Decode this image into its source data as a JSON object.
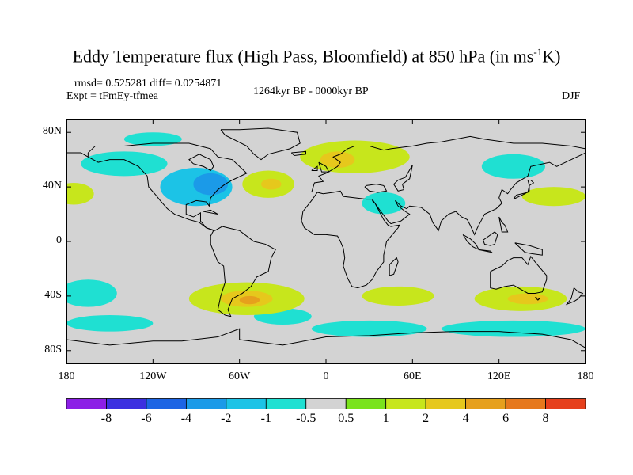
{
  "title": {
    "main": "Eddy Temperature flux (High Pass, Bloomfield) at 850 hPa (in ms",
    "sup": "-1",
    "end": "K)"
  },
  "stats_text": "rmsd= 0.525281 diff= 0.0254871",
  "experiment_text": "Expt = tFmEy-tfmea",
  "period_text": "1264kyr BP - 0000kyr BP",
  "season_text": "DJF",
  "lat_labels": [
    "80N",
    "40N",
    "0",
    "40S",
    "80S"
  ],
  "lon_labels": [
    "180",
    "120W",
    "60W",
    "0",
    "60E",
    "120E",
    "180"
  ],
  "colorbar": {
    "labels": [
      "-8",
      "-6",
      "-4",
      "-2",
      "-1",
      "-0.5",
      "0.5",
      "1",
      "2",
      "4",
      "6",
      "8"
    ],
    "colors": [
      "#8c1fe6",
      "#3b2fe0",
      "#1c64e4",
      "#1b9ae8",
      "#1cc3e6",
      "#1fe0d2",
      "#d3d3d3",
      "#7ae31c",
      "#c7e61c",
      "#e6c81c",
      "#e6a01c",
      "#e6781c",
      "#e6401c"
    ]
  },
  "map": {
    "background": "#d3d3d3",
    "coastline_color": "#000000",
    "anomaly_patches": [
      {
        "lon": 20,
        "lat": 62,
        "rlon": 38,
        "rlat": 12,
        "level": "1"
      },
      {
        "lon": 8,
        "lat": 60,
        "rlon": 12,
        "rlat": 6,
        "level": "2"
      },
      {
        "lon": -40,
        "lat": 42,
        "rlon": 18,
        "rlat": 10,
        "level": "1"
      },
      {
        "lon": -38,
        "lat": 42,
        "rlon": 7,
        "rlat": 4,
        "level": "2"
      },
      {
        "lon": -175,
        "lat": 35,
        "rlon": 14,
        "rlat": 8,
        "level": "1"
      },
      {
        "lon": 158,
        "lat": 33,
        "rlon": 22,
        "rlat": 7,
        "level": "1"
      },
      {
        "lon": -55,
        "lat": -42,
        "rlon": 40,
        "rlat": 12,
        "level": "1"
      },
      {
        "lon": -55,
        "lat": -42,
        "rlon": 18,
        "rlat": 6,
        "level": "2"
      },
      {
        "lon": -53,
        "lat": -43,
        "rlon": 7,
        "rlat": 3,
        "level": "4"
      },
      {
        "lon": 50,
        "lat": -40,
        "rlon": 25,
        "rlat": 7,
        "level": "1"
      },
      {
        "lon": 135,
        "lat": -42,
        "rlon": 32,
        "rlat": 9,
        "level": "1"
      },
      {
        "lon": 140,
        "lat": -42,
        "rlon": 14,
        "rlat": 4,
        "level": "2"
      }
    ],
    "negative_patches": [
      {
        "lon": -90,
        "lat": 40,
        "rlon": 25,
        "rlat": 14,
        "level": "-1"
      },
      {
        "lon": -80,
        "lat": 42,
        "rlon": 12,
        "rlat": 8,
        "level": "-2"
      },
      {
        "lon": -140,
        "lat": 57,
        "rlon": 30,
        "rlat": 9,
        "level": "-0.5"
      },
      {
        "lon": -120,
        "lat": 75,
        "rlon": 20,
        "rlat": 5,
        "level": "-0.5"
      },
      {
        "lon": 130,
        "lat": 55,
        "rlon": 22,
        "rlat": 9,
        "level": "-0.5"
      },
      {
        "lon": 40,
        "lat": 28,
        "rlon": 15,
        "rlat": 8,
        "level": "-0.5"
      },
      {
        "lon": -165,
        "lat": -38,
        "rlon": 20,
        "rlat": 10,
        "level": "-0.5"
      },
      {
        "lon": -150,
        "lat": -60,
        "rlon": 30,
        "rlat": 6,
        "level": "-0.5"
      },
      {
        "lon": 30,
        "lat": -64,
        "rlon": 40,
        "rlat": 6,
        "level": "-0.5"
      },
      {
        "lon": 130,
        "lat": -64,
        "rlon": 50,
        "rlat": 6,
        "level": "-0.5"
      },
      {
        "lon": -30,
        "lat": -55,
        "rlon": 20,
        "rlat": 6,
        "level": "-0.5"
      }
    ]
  }
}
